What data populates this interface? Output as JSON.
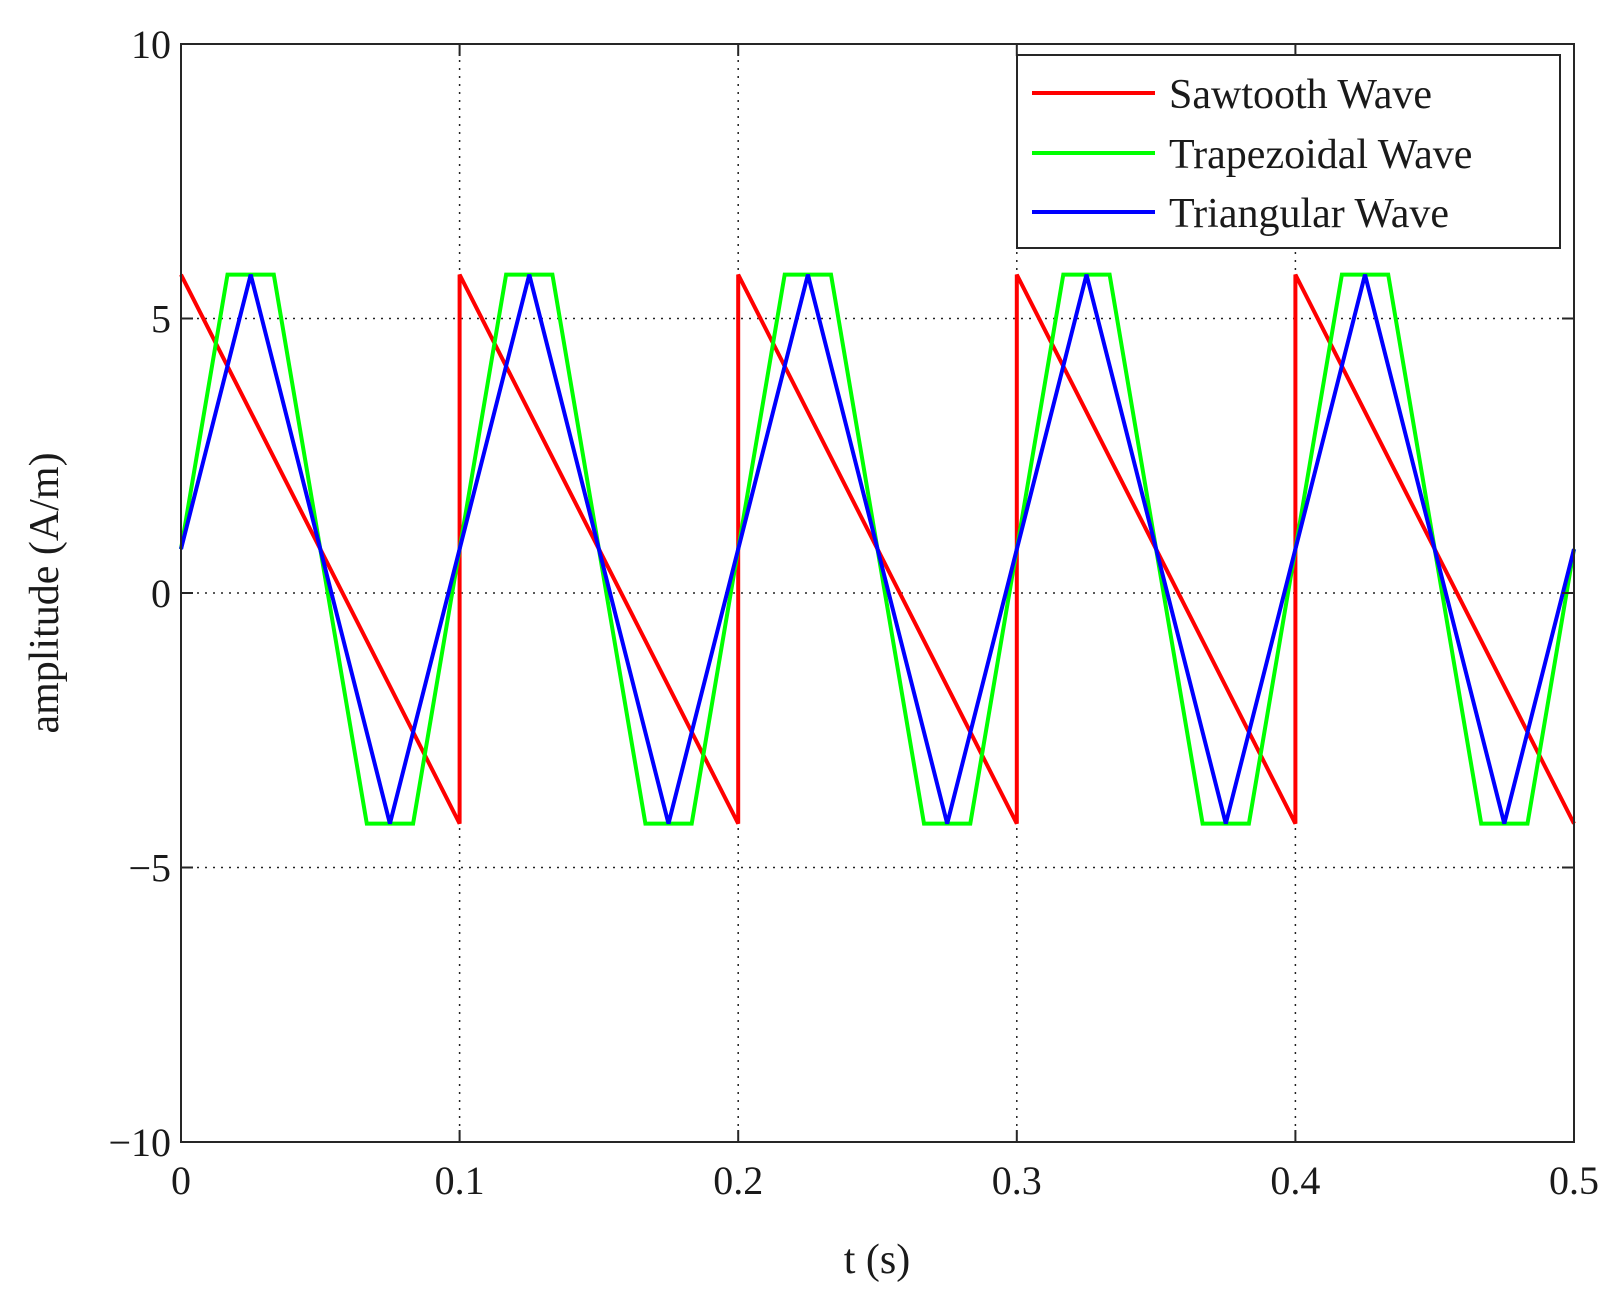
{
  "chart_data": {
    "type": "line",
    "title": "",
    "xlabel": "t (s)",
    "ylabel": "amplitude (A/m)",
    "xlim": [
      0,
      0.5
    ],
    "ylim": [
      -10,
      10
    ],
    "x_ticks": [
      0,
      0.1,
      0.2,
      0.3,
      0.4,
      0.5
    ],
    "x_tick_labels": [
      "0",
      "0.1",
      "0.2",
      "0.3",
      "0.4",
      "0.5"
    ],
    "y_ticks": [
      -10,
      -5,
      0,
      5,
      10
    ],
    "y_tick_labels": [
      "−10",
      "−5",
      "0",
      "5",
      "10"
    ],
    "grid": true,
    "legend_position": "top-right",
    "series": [
      {
        "name": "Sawtooth Wave",
        "color": "#ff0000",
        "x": [
          0,
          0.1,
          0.1,
          0.2,
          0.2,
          0.3,
          0.3,
          0.4,
          0.4,
          0.5
        ],
        "y": [
          5.8,
          -4.2,
          5.8,
          -4.2,
          5.8,
          -4.2,
          5.8,
          -4.2,
          5.8,
          -4.2
        ]
      },
      {
        "name": "Trapezoidal Wave",
        "color": "#00ff00",
        "x": [
          0,
          0.0167,
          0.0333,
          0.0667,
          0.0833,
          0.1167,
          0.1333,
          0.1667,
          0.1833,
          0.2167,
          0.2333,
          0.2667,
          0.2833,
          0.3167,
          0.3333,
          0.3667,
          0.3833,
          0.4167,
          0.4333,
          0.4667,
          0.4833,
          0.5
        ],
        "y": [
          0.8,
          5.8,
          5.8,
          -4.2,
          -4.2,
          5.8,
          5.8,
          -4.2,
          -4.2,
          5.8,
          5.8,
          -4.2,
          -4.2,
          5.8,
          5.8,
          -4.2,
          -4.2,
          5.8,
          5.8,
          -4.2,
          -4.2,
          0.8
        ]
      },
      {
        "name": "Triangular Wave",
        "color": "#0000ff",
        "x": [
          0,
          0.025,
          0.075,
          0.125,
          0.175,
          0.225,
          0.275,
          0.325,
          0.375,
          0.425,
          0.475,
          0.5
        ],
        "y": [
          0.8,
          5.8,
          -4.2,
          5.8,
          -4.2,
          5.8,
          -4.2,
          5.8,
          -4.2,
          5.8,
          -4.2,
          0.8
        ]
      }
    ]
  }
}
